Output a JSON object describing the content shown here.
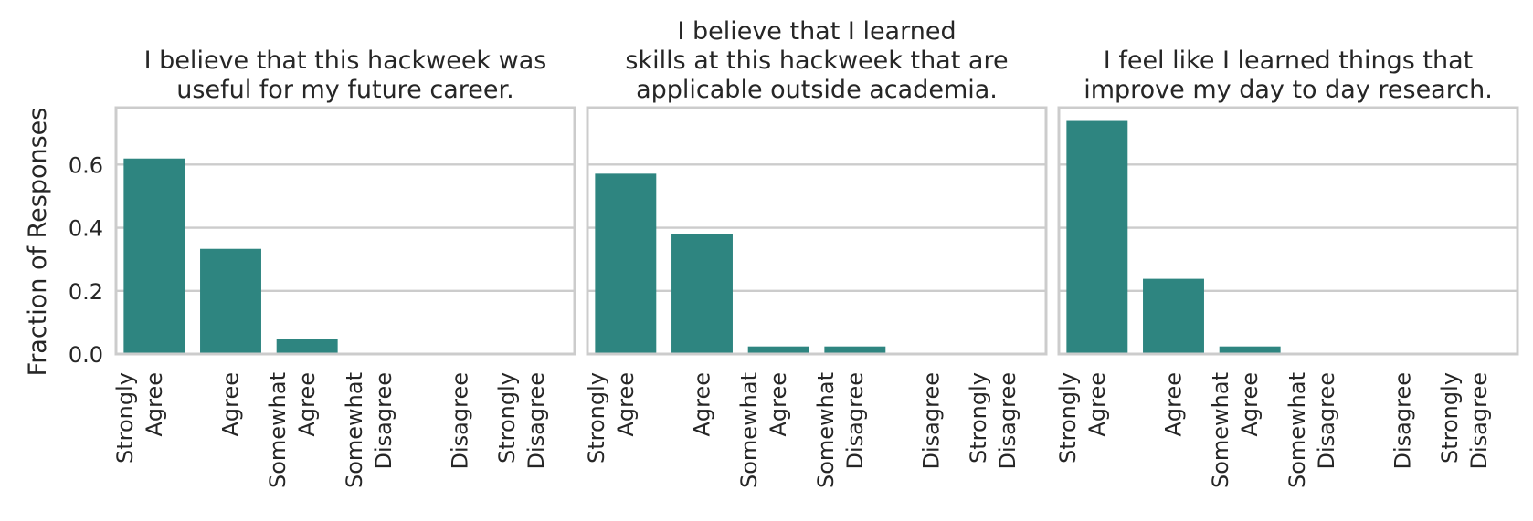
{
  "chart_data": {
    "type": "bar",
    "ylabel": "Fraction of Responses",
    "ylim": [
      0,
      0.78
    ],
    "yticks": [
      "0.0",
      "0.2",
      "0.4",
      "0.6"
    ],
    "grid": true,
    "bar_color": "#2e8580",
    "categories": [
      [
        "Strongly",
        "Agree"
      ],
      [
        "Agree"
      ],
      [
        "Somewhat",
        "Agree"
      ],
      [
        "Somewhat",
        "Disagree"
      ],
      [
        "Disagree"
      ],
      [
        "Strongly",
        "Disagree"
      ]
    ],
    "panels": [
      {
        "title": [
          "I believe that this hackweek was",
          "useful for my future career."
        ],
        "values": [
          0.619,
          0.333,
          0.048,
          0,
          0,
          0
        ]
      },
      {
        "title": [
          "I believe that I learned",
          "skills at this hackweek that are",
          "applicable outside academia."
        ],
        "values": [
          0.571,
          0.381,
          0.024,
          0.024,
          0,
          0
        ]
      },
      {
        "title": [
          "I feel like I learned things that",
          "improve my day to day research."
        ],
        "values": [
          0.738,
          0.238,
          0.024,
          0,
          0,
          0
        ]
      }
    ]
  }
}
